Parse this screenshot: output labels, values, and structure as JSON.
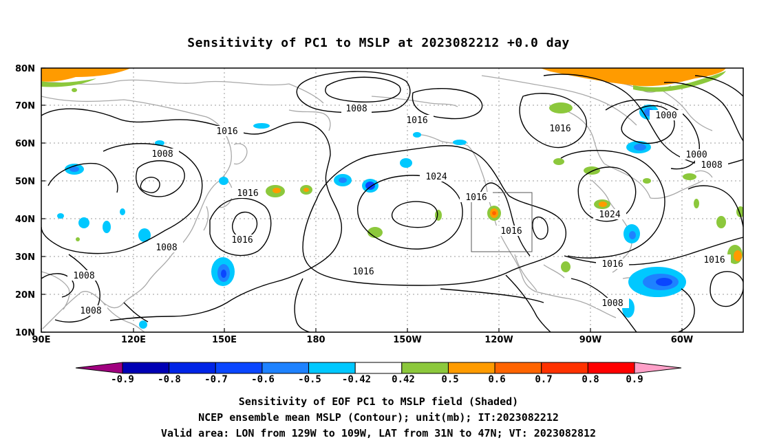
{
  "title": "Sensitivity of PC1 to MSLP at 2023082212 +0.0 day",
  "map": {
    "lon_labels": [
      "90E",
      "120E",
      "150E",
      "180",
      "150W",
      "120W",
      "90W",
      "60W"
    ],
    "lat_labels": [
      "80N",
      "70N",
      "60N",
      "50N",
      "40N",
      "30N",
      "20N",
      "10N"
    ],
    "contour_labels": [
      "1008",
      "1016",
      "1008",
      "1016",
      "1016",
      "1024",
      "1016",
      "1016",
      "1016",
      "1016",
      "1016",
      "1024",
      "1016",
      "1000",
      "1000",
      "1008",
      "1016",
      "1008",
      "1008",
      "1008",
      "1008"
    ]
  },
  "colorbar": {
    "tick_labels": [
      "-0.9",
      "-0.8",
      "-0.7",
      "-0.6",
      "-0.5",
      "-0.42",
      "0.42",
      "0.5",
      "0.6",
      "0.7",
      "0.8",
      "0.9"
    ],
    "colors": [
      "#a0007f",
      "#0000b4",
      "#0024e6",
      "#0a46ff",
      "#1e82ff",
      "#00c8ff",
      "#ffffff",
      "#8cc83c",
      "#ff9b00",
      "#ff6400",
      "#ff3200",
      "#ff0000",
      "#ffa0c8"
    ]
  },
  "caption": {
    "line1": "Sensitivity of EOF PC1 to MSLP field (Shaded)",
    "line2": "NCEP ensemble mean MSLP (Contour); unit(mb); IT:2023082212",
    "line3": "Valid area: LON from 129W to 109W, LAT from 31N to 47N; VT: 2023082812"
  }
}
